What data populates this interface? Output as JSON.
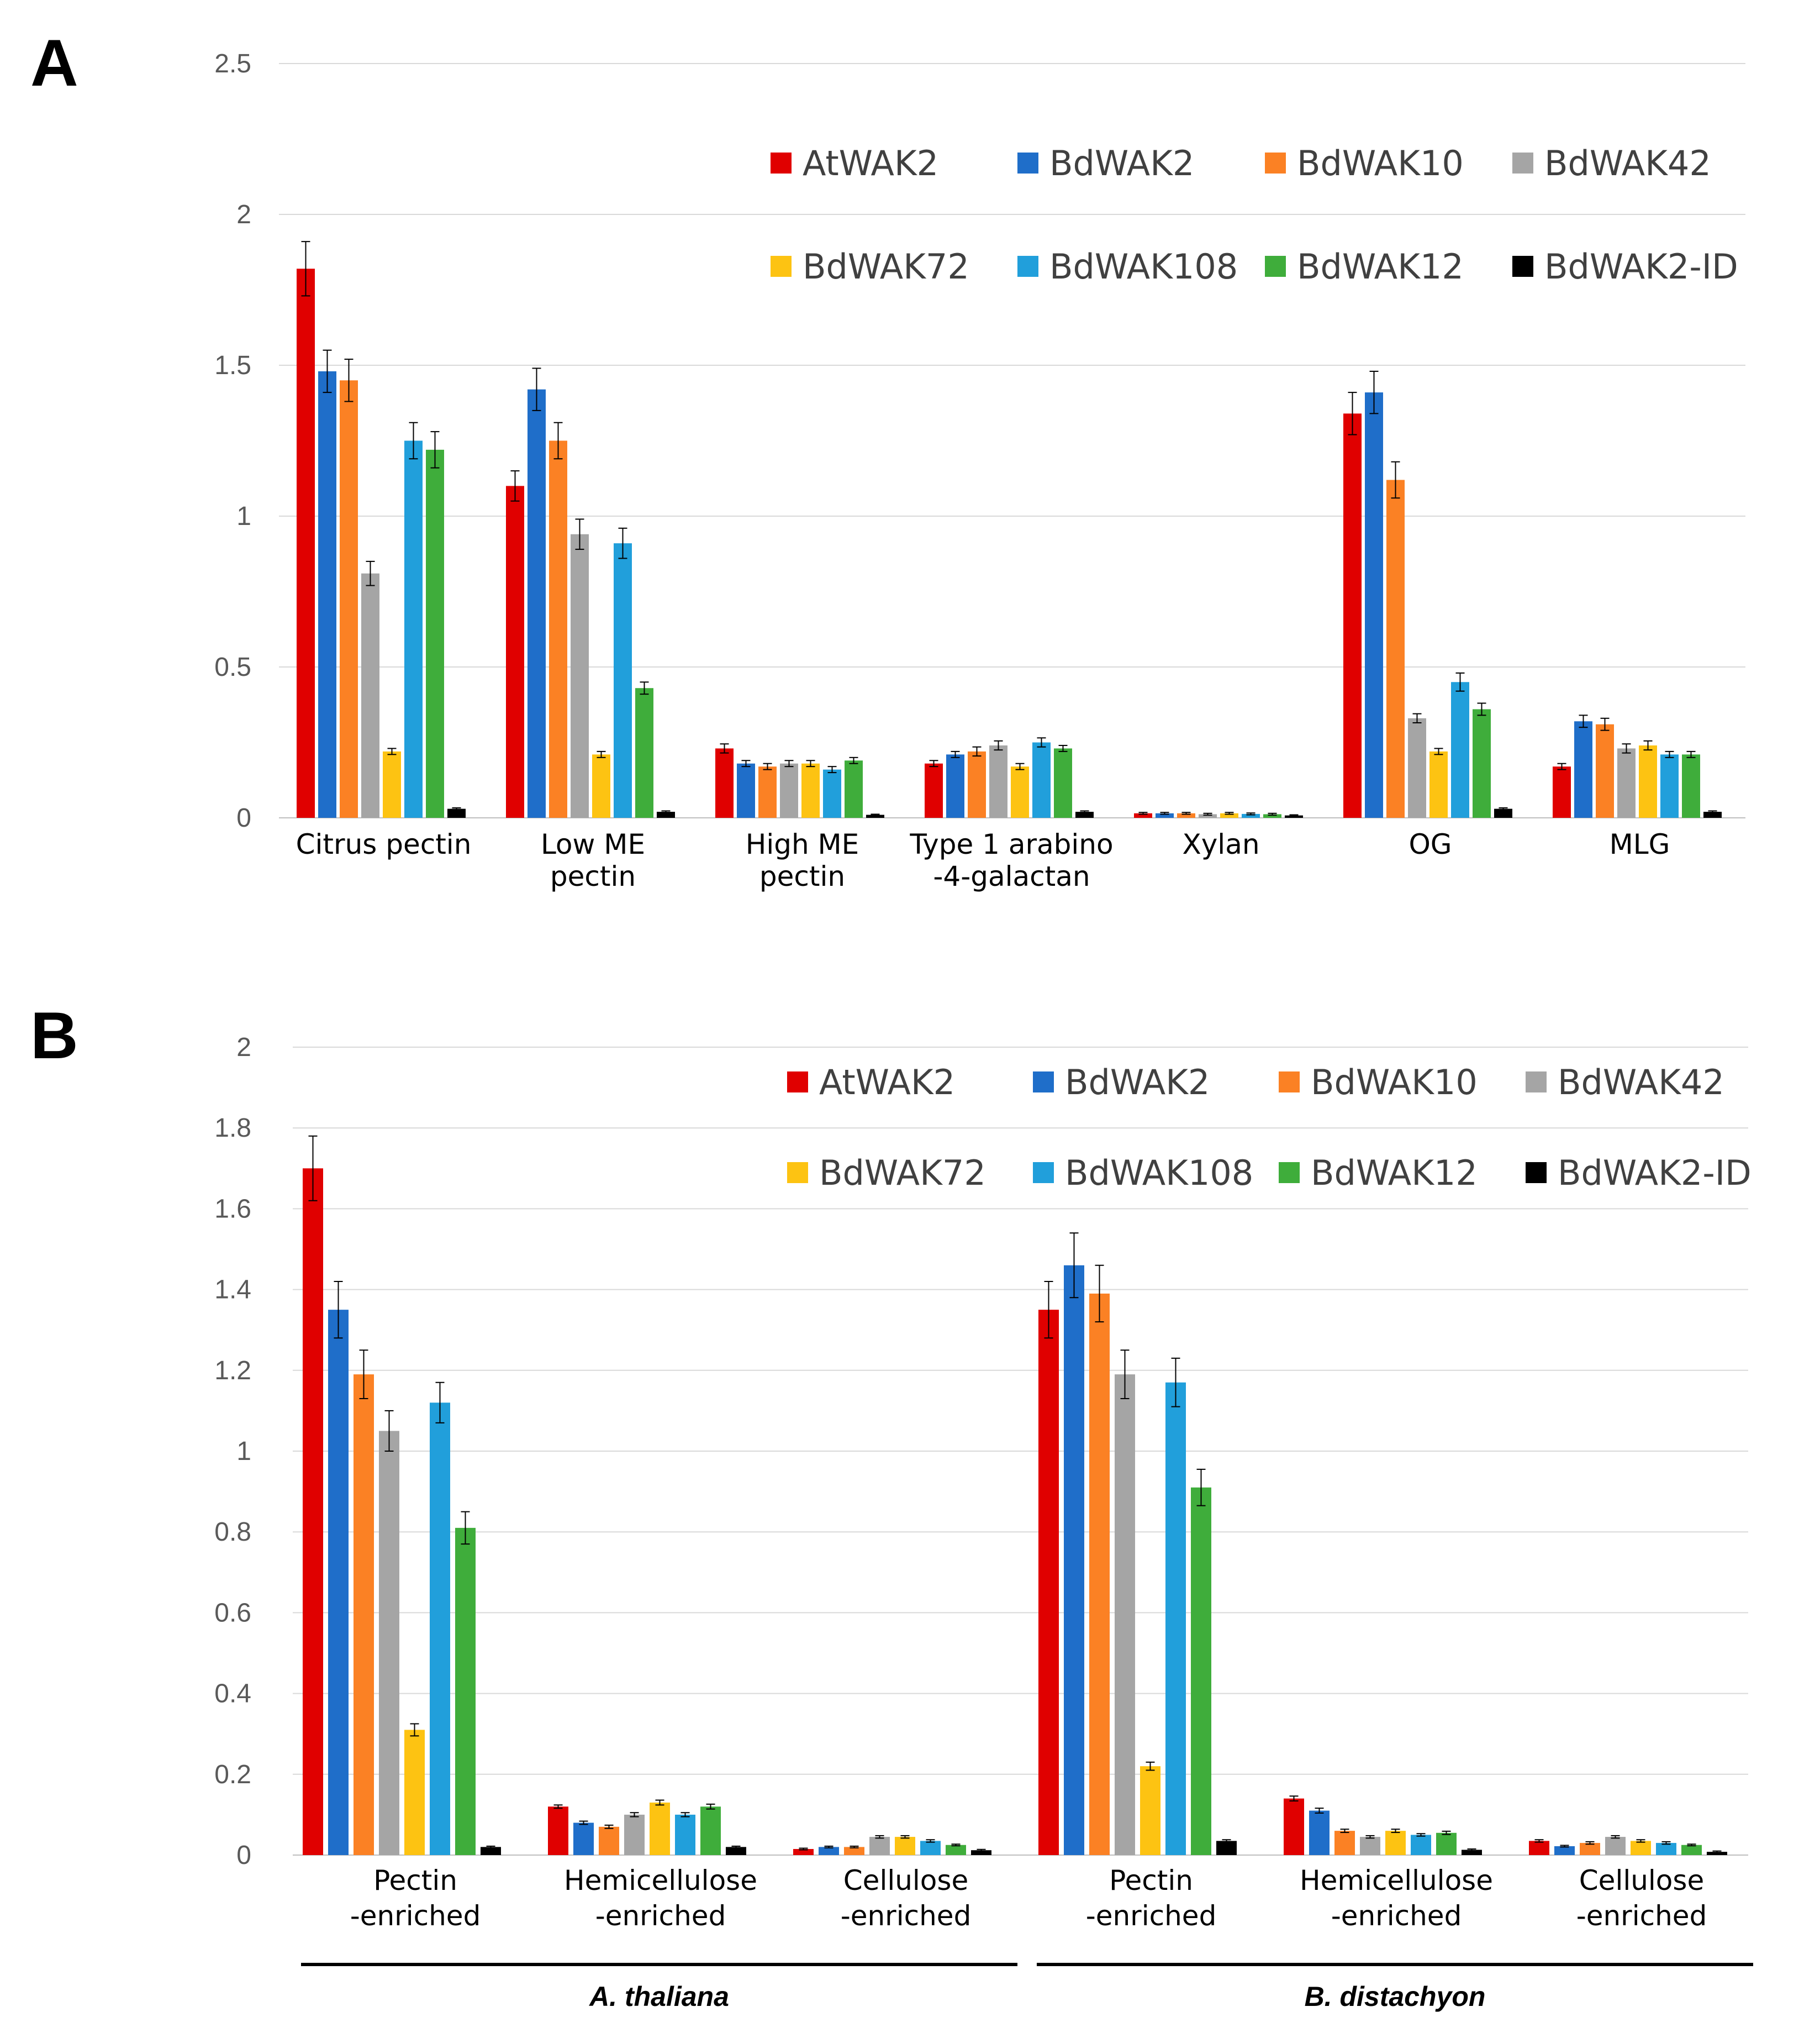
{
  "colors": {
    "AtWAK2": "#e00000",
    "BdWAK2": "#1f6ec9",
    "BdWAK10": "#fb8124",
    "BdWAK42": "#a5a5a5",
    "BdWAK72": "#fdc312",
    "BdWAK108": "#219fdb",
    "BdWAK12": "#3fad3b",
    "BdWAK2-ID": "#000000"
  },
  "chart_data": [
    {
      "panel": "A",
      "type": "bar",
      "ylim": [
        0,
        2.5
      ],
      "yticks": [
        "0",
        "0.5",
        "1",
        "1.5",
        "2",
        "2.5"
      ],
      "categories": [
        [
          "Citrus pectin"
        ],
        [
          "Low ME",
          "pectin"
        ],
        [
          "High ME",
          "pectin"
        ],
        [
          "Type 1 arabino",
          "-4-galactan"
        ],
        [
          "Xylan"
        ],
        [
          "OG"
        ],
        [
          "MLG"
        ]
      ],
      "legend": [
        "AtWAK2",
        "BdWAK2",
        "BdWAK10",
        "BdWAK42",
        "BdWAK72",
        "BdWAK108",
        "BdWAK12",
        "BdWAK2-ID"
      ],
      "series": [
        {
          "name": "AtWAK2",
          "values": [
            1.82,
            1.1,
            0.23,
            0.18,
            0.015,
            1.34,
            0.17
          ],
          "errors": [
            0.09,
            0.05,
            0.015,
            0.01,
            0.003,
            0.07,
            0.01
          ]
        },
        {
          "name": "BdWAK2",
          "values": [
            1.48,
            1.42,
            0.18,
            0.21,
            0.015,
            1.41,
            0.32
          ],
          "errors": [
            0.07,
            0.07,
            0.01,
            0.01,
            0.003,
            0.07,
            0.02
          ]
        },
        {
          "name": "BdWAK10",
          "values": [
            1.45,
            1.25,
            0.17,
            0.22,
            0.015,
            1.12,
            0.31
          ],
          "errors": [
            0.07,
            0.06,
            0.01,
            0.015,
            0.003,
            0.06,
            0.02
          ]
        },
        {
          "name": "BdWAK42",
          "values": [
            0.81,
            0.94,
            0.18,
            0.24,
            0.012,
            0.33,
            0.23
          ],
          "errors": [
            0.04,
            0.05,
            0.01,
            0.015,
            0.003,
            0.015,
            0.015
          ]
        },
        {
          "name": "BdWAK72",
          "values": [
            0.22,
            0.21,
            0.18,
            0.17,
            0.015,
            0.22,
            0.24
          ],
          "errors": [
            0.01,
            0.01,
            0.01,
            0.01,
            0.003,
            0.01,
            0.015
          ]
        },
        {
          "name": "BdWAK108",
          "values": [
            1.25,
            0.91,
            0.16,
            0.25,
            0.013,
            0.45,
            0.21
          ],
          "errors": [
            0.06,
            0.05,
            0.01,
            0.015,
            0.003,
            0.03,
            0.01
          ]
        },
        {
          "name": "BdWAK12",
          "values": [
            1.22,
            0.43,
            0.19,
            0.23,
            0.012,
            0.36,
            0.21
          ],
          "errors": [
            0.06,
            0.02,
            0.01,
            0.01,
            0.003,
            0.02,
            0.01
          ]
        },
        {
          "name": "BdWAK2-ID",
          "values": [
            0.03,
            0.02,
            0.01,
            0.02,
            0.008,
            0.03,
            0.02
          ],
          "errors": [
            0.003,
            0.003,
            0.002,
            0.003,
            0.002,
            0.003,
            0.003
          ]
        }
      ]
    },
    {
      "panel": "B",
      "type": "bar",
      "ylim": [
        0,
        2
      ],
      "yticks": [
        "0",
        "0.2",
        "0.4",
        "0.6",
        "0.8",
        "1",
        "1.2",
        "1.4",
        "1.6",
        "1.8",
        "2"
      ],
      "categories": [
        [
          "Pectin",
          "-enriched"
        ],
        [
          "Hemicellulose",
          "-enriched"
        ],
        [
          "Cellulose",
          "-enriched"
        ],
        [
          "Pectin",
          "-enriched"
        ],
        [
          "Hemicellulose",
          "-enriched"
        ],
        [
          "Cellulose",
          "-enriched"
        ]
      ],
      "groups": [
        "A. thaliana",
        "B. distachyon"
      ],
      "legend": [
        "AtWAK2",
        "BdWAK2",
        "BdWAK10",
        "BdWAK42",
        "BdWAK72",
        "BdWAK108",
        "BdWAK12",
        "BdWAK2-ID"
      ],
      "series": [
        {
          "name": "AtWAK2",
          "values": [
            1.7,
            0.12,
            0.015,
            1.35,
            0.14,
            0.035
          ],
          "errors": [
            0.08,
            0.004,
            0.002,
            0.07,
            0.006,
            0.003
          ]
        },
        {
          "name": "BdWAK2",
          "values": [
            1.35,
            0.08,
            0.02,
            1.46,
            0.11,
            0.022
          ],
          "errors": [
            0.07,
            0.004,
            0.002,
            0.08,
            0.006,
            0.002
          ]
        },
        {
          "name": "BdWAK10",
          "values": [
            1.19,
            0.07,
            0.02,
            1.39,
            0.06,
            0.03
          ],
          "errors": [
            0.06,
            0.004,
            0.002,
            0.07,
            0.004,
            0.003
          ]
        },
        {
          "name": "BdWAK42",
          "values": [
            1.05,
            0.1,
            0.045,
            1.19,
            0.045,
            0.045
          ],
          "errors": [
            0.05,
            0.005,
            0.003,
            0.06,
            0.003,
            0.003
          ]
        },
        {
          "name": "BdWAK72",
          "values": [
            0.31,
            0.13,
            0.045,
            0.22,
            0.06,
            0.035
          ],
          "errors": [
            0.015,
            0.006,
            0.003,
            0.01,
            0.004,
            0.003
          ]
        },
        {
          "name": "BdWAK108",
          "values": [
            1.12,
            0.1,
            0.035,
            1.17,
            0.05,
            0.03
          ],
          "errors": [
            0.05,
            0.005,
            0.003,
            0.06,
            0.003,
            0.003
          ]
        },
        {
          "name": "BdWAK12",
          "values": [
            0.81,
            0.12,
            0.025,
            0.91,
            0.055,
            0.025
          ],
          "errors": [
            0.04,
            0.006,
            0.002,
            0.045,
            0.004,
            0.002
          ]
        },
        {
          "name": "BdWAK2-ID",
          "values": [
            0.02,
            0.02,
            0.012,
            0.035,
            0.013,
            0.008
          ],
          "errors": [
            0.002,
            0.002,
            0.002,
            0.003,
            0.002,
            0.002
          ]
        }
      ]
    }
  ],
  "labels": {
    "panel_a": "A",
    "panel_b": "B"
  }
}
